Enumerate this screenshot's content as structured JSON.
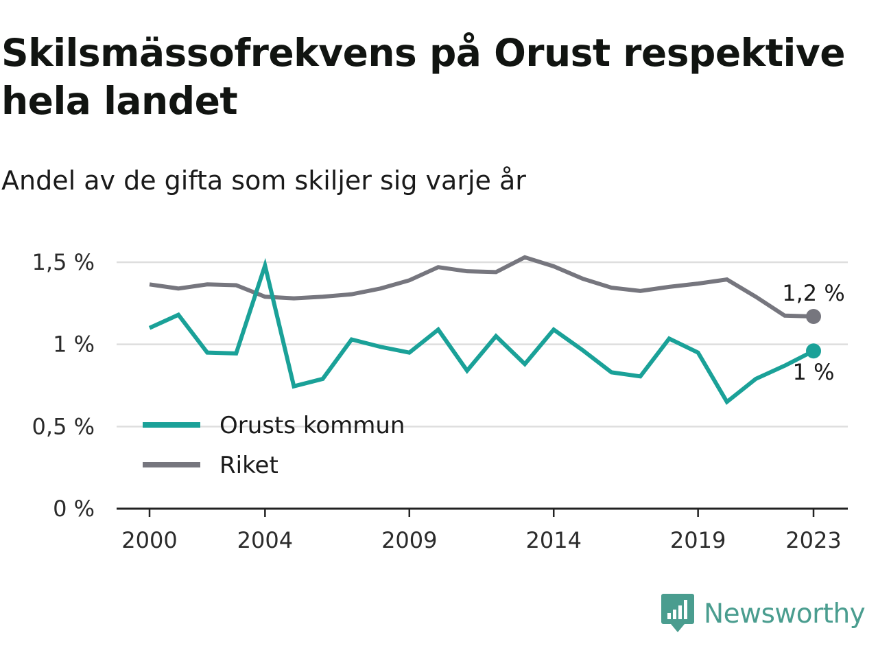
{
  "title": "Skilsmässofrekvens på Orust respektive hela landet",
  "subtitle": "Andel av de gifta som skiljer sig varje år",
  "brand": {
    "name": "Newsworthy",
    "icon": "newsworthy-logo-icon",
    "color": "#4a9d8f"
  },
  "chart_data": {
    "type": "line",
    "x": [
      2000,
      2001,
      2002,
      2003,
      2004,
      2005,
      2006,
      2007,
      2008,
      2009,
      2010,
      2011,
      2012,
      2013,
      2014,
      2015,
      2016,
      2017,
      2018,
      2019,
      2020,
      2021,
      2022,
      2023
    ],
    "x_ticks": [
      "2000",
      "2004",
      "2009",
      "2014",
      "2019",
      "2023"
    ],
    "y_ticks": [
      0,
      0.5,
      1,
      1.5
    ],
    "y_tick_labels": [
      "0 %",
      "0,5 %",
      "1 %",
      "1,5 %"
    ],
    "ylim": [
      0,
      1.5
    ],
    "grid": true,
    "legend_position": "inside lower-left",
    "series": [
      {
        "name": "Orusts kommun",
        "color": "#1aa198",
        "end_label": "1 %",
        "values": [
          1.1,
          1.18,
          0.95,
          0.945,
          1.48,
          0.745,
          0.79,
          1.03,
          0.985,
          0.95,
          1.09,
          0.84,
          1.05,
          0.88,
          1.09,
          0.965,
          0.83,
          0.805,
          1.035,
          0.95,
          0.65,
          0.79,
          0.87,
          0.96
        ]
      },
      {
        "name": "Riket",
        "color": "#76767e",
        "end_label": "1,2 %",
        "values": [
          1.365,
          1.34,
          1.365,
          1.36,
          1.29,
          1.28,
          1.29,
          1.305,
          1.34,
          1.39,
          1.47,
          1.445,
          1.44,
          1.53,
          1.475,
          1.4,
          1.345,
          1.325,
          1.35,
          1.37,
          1.395,
          1.29,
          1.175,
          1.17
        ]
      }
    ]
  }
}
